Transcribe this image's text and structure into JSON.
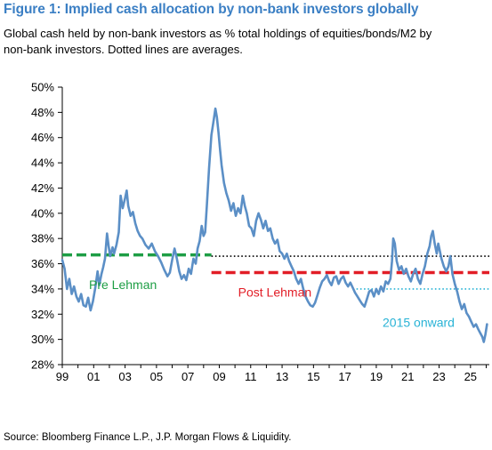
{
  "figure": {
    "title": "Figure 1: Implied cash allocation by non-bank investors globally",
    "subtitle_line1": "Global cash held by non-bank investors as % total holdings of equities/bonds/M2 by",
    "subtitle_line2": "non-bank investors. Dotted lines are averages.",
    "source": "Source: Bloomberg Finance L.P., J.P. Morgan Flows & Liquidity."
  },
  "colors": {
    "title": "#3b7fc4",
    "series": "#5b8fc6",
    "pre_lehman": "#1e9e45",
    "post_lehman": "#e21d26",
    "onward_2015": "#29b3d6",
    "average_dotted": "#000000"
  },
  "chart_data": {
    "type": "line",
    "title": "",
    "xlabel": "",
    "ylabel": "",
    "xlim": [
      1999,
      2026.2
    ],
    "ylim": [
      28,
      50
    ],
    "yticks": [
      28,
      30,
      32,
      34,
      36,
      38,
      40,
      42,
      44,
      46,
      48,
      50
    ],
    "ytick_labels": [
      "28%",
      "30%",
      "32%",
      "34%",
      "36%",
      "38%",
      "40%",
      "42%",
      "44%",
      "46%",
      "48%",
      "50%"
    ],
    "xticks": [
      1999,
      2001,
      2003,
      2005,
      2007,
      2009,
      2011,
      2013,
      2015,
      2017,
      2019,
      2021,
      2023,
      2025
    ],
    "xtick_labels": [
      "99",
      "01",
      "03",
      "05",
      "07",
      "09",
      "11",
      "13",
      "15",
      "17",
      "19",
      "21",
      "23",
      "25"
    ],
    "grid": false,
    "series": [
      {
        "values": [
          [
            1999.0,
            36.3
          ],
          [
            1999.15,
            35.6
          ],
          [
            1999.3,
            34.0
          ],
          [
            1999.45,
            34.8
          ],
          [
            1999.6,
            33.6
          ],
          [
            1999.75,
            34.2
          ],
          [
            1999.9,
            33.4
          ],
          [
            2000.05,
            33.0
          ],
          [
            2000.2,
            33.6
          ],
          [
            2000.35,
            32.7
          ],
          [
            2000.5,
            32.6
          ],
          [
            2000.65,
            33.3
          ],
          [
            2000.8,
            32.3
          ],
          [
            2000.95,
            33.0
          ],
          [
            2001.1,
            34.1
          ],
          [
            2001.25,
            35.4
          ],
          [
            2001.35,
            34.3
          ],
          [
            2001.5,
            35.2
          ],
          [
            2001.6,
            35.7
          ],
          [
            2001.72,
            36.4
          ],
          [
            2001.85,
            38.4
          ],
          [
            2001.95,
            37.4
          ],
          [
            2002.05,
            36.6
          ],
          [
            2002.2,
            37.3
          ],
          [
            2002.3,
            36.8
          ],
          [
            2002.45,
            37.5
          ],
          [
            2002.6,
            38.5
          ],
          [
            2002.72,
            41.4
          ],
          [
            2002.85,
            40.4
          ],
          [
            2003.0,
            41.2
          ],
          [
            2003.1,
            41.8
          ],
          [
            2003.2,
            40.6
          ],
          [
            2003.35,
            39.8
          ],
          [
            2003.5,
            40.1
          ],
          [
            2003.65,
            39.2
          ],
          [
            2003.8,
            38.6
          ],
          [
            2003.95,
            38.2
          ],
          [
            2004.1,
            38.0
          ],
          [
            2004.3,
            37.5
          ],
          [
            2004.5,
            37.2
          ],
          [
            2004.7,
            37.6
          ],
          [
            2004.9,
            37.0
          ],
          [
            2005.1,
            36.6
          ],
          [
            2005.3,
            36.1
          ],
          [
            2005.5,
            35.5
          ],
          [
            2005.7,
            35.0
          ],
          [
            2005.85,
            35.3
          ],
          [
            2006.0,
            36.3
          ],
          [
            2006.15,
            37.2
          ],
          [
            2006.3,
            36.4
          ],
          [
            2006.45,
            35.4
          ],
          [
            2006.6,
            34.8
          ],
          [
            2006.75,
            35.1
          ],
          [
            2006.9,
            34.7
          ],
          [
            2007.05,
            35.6
          ],
          [
            2007.2,
            35.2
          ],
          [
            2007.35,
            36.4
          ],
          [
            2007.5,
            36.0
          ],
          [
            2007.62,
            37.2
          ],
          [
            2007.75,
            37.8
          ],
          [
            2007.88,
            39.0
          ],
          [
            2008.0,
            38.2
          ],
          [
            2008.1,
            38.5
          ],
          [
            2008.2,
            40.5
          ],
          [
            2008.35,
            43.6
          ],
          [
            2008.5,
            46.2
          ],
          [
            2008.62,
            47.2
          ],
          [
            2008.75,
            48.3
          ],
          [
            2008.85,
            47.6
          ],
          [
            2008.95,
            46.4
          ],
          [
            2009.05,
            45.0
          ],
          [
            2009.15,
            43.8
          ],
          [
            2009.3,
            42.4
          ],
          [
            2009.45,
            41.6
          ],
          [
            2009.6,
            41.0
          ],
          [
            2009.75,
            40.2
          ],
          [
            2009.9,
            40.8
          ],
          [
            2010.05,
            39.8
          ],
          [
            2010.2,
            40.4
          ],
          [
            2010.35,
            40.0
          ],
          [
            2010.5,
            41.4
          ],
          [
            2010.62,
            40.6
          ],
          [
            2010.75,
            40.0
          ],
          [
            2010.9,
            39.0
          ],
          [
            2011.05,
            38.8
          ],
          [
            2011.2,
            38.2
          ],
          [
            2011.35,
            39.4
          ],
          [
            2011.5,
            40.0
          ],
          [
            2011.65,
            39.5
          ],
          [
            2011.8,
            38.8
          ],
          [
            2011.95,
            39.4
          ],
          [
            2012.1,
            38.6
          ],
          [
            2012.25,
            38.8
          ],
          [
            2012.4,
            38.0
          ],
          [
            2012.55,
            37.6
          ],
          [
            2012.7,
            37.9
          ],
          [
            2012.85,
            37.0
          ],
          [
            2013.0,
            36.8
          ],
          [
            2013.15,
            36.4
          ],
          [
            2013.3,
            36.8
          ],
          [
            2013.45,
            36.2
          ],
          [
            2013.6,
            35.8
          ],
          [
            2013.75,
            35.4
          ],
          [
            2013.9,
            34.8
          ],
          [
            2014.05,
            34.4
          ],
          [
            2014.2,
            34.8
          ],
          [
            2014.35,
            34.0
          ],
          [
            2014.5,
            33.4
          ],
          [
            2014.65,
            33.0
          ],
          [
            2014.8,
            32.7
          ],
          [
            2014.95,
            32.6
          ],
          [
            2015.1,
            32.9
          ],
          [
            2015.25,
            33.5
          ],
          [
            2015.4,
            34.1
          ],
          [
            2015.55,
            34.6
          ],
          [
            2015.7,
            34.8
          ],
          [
            2015.85,
            35.1
          ],
          [
            2016.0,
            34.6
          ],
          [
            2016.15,
            34.3
          ],
          [
            2016.3,
            34.9
          ],
          [
            2016.45,
            35.0
          ],
          [
            2016.6,
            34.4
          ],
          [
            2016.75,
            34.8
          ],
          [
            2016.9,
            35.0
          ],
          [
            2017.05,
            34.5
          ],
          [
            2017.2,
            34.2
          ],
          [
            2017.35,
            34.5
          ],
          [
            2017.5,
            34.1
          ],
          [
            2017.65,
            33.7
          ],
          [
            2017.8,
            33.4
          ],
          [
            2017.95,
            33.1
          ],
          [
            2018.1,
            32.8
          ],
          [
            2018.25,
            32.6
          ],
          [
            2018.4,
            33.2
          ],
          [
            2018.55,
            33.8
          ],
          [
            2018.7,
            33.9
          ],
          [
            2018.85,
            33.4
          ],
          [
            2019.0,
            34.0
          ],
          [
            2019.15,
            33.6
          ],
          [
            2019.3,
            34.2
          ],
          [
            2019.45,
            33.8
          ],
          [
            2019.6,
            34.6
          ],
          [
            2019.75,
            34.4
          ],
          [
            2019.9,
            34.8
          ],
          [
            2020.0,
            36.2
          ],
          [
            2020.08,
            38.0
          ],
          [
            2020.18,
            37.6
          ],
          [
            2020.3,
            36.2
          ],
          [
            2020.45,
            35.5
          ],
          [
            2020.6,
            35.8
          ],
          [
            2020.75,
            35.2
          ],
          [
            2020.9,
            35.6
          ],
          [
            2021.05,
            35.0
          ],
          [
            2021.2,
            34.6
          ],
          [
            2021.35,
            35.2
          ],
          [
            2021.5,
            35.6
          ],
          [
            2021.65,
            34.8
          ],
          [
            2021.8,
            34.4
          ],
          [
            2021.95,
            35.2
          ],
          [
            2022.1,
            35.8
          ],
          [
            2022.25,
            36.8
          ],
          [
            2022.4,
            37.4
          ],
          [
            2022.5,
            38.2
          ],
          [
            2022.6,
            38.6
          ],
          [
            2022.72,
            37.6
          ],
          [
            2022.85,
            36.8
          ],
          [
            2022.95,
            37.6
          ],
          [
            2023.05,
            37.0
          ],
          [
            2023.15,
            36.4
          ],
          [
            2023.3,
            35.8
          ],
          [
            2023.45,
            35.4
          ],
          [
            2023.6,
            35.8
          ],
          [
            2023.72,
            36.6
          ],
          [
            2023.85,
            35.2
          ],
          [
            2024.0,
            34.4
          ],
          [
            2024.15,
            33.8
          ],
          [
            2024.3,
            33.0
          ],
          [
            2024.45,
            32.4
          ],
          [
            2024.6,
            32.8
          ],
          [
            2024.75,
            32.1
          ],
          [
            2024.9,
            31.8
          ],
          [
            2025.05,
            31.4
          ],
          [
            2025.2,
            31.0
          ],
          [
            2025.35,
            31.2
          ],
          [
            2025.5,
            30.8
          ],
          [
            2025.62,
            30.5
          ],
          [
            2025.75,
            30.2
          ],
          [
            2025.85,
            29.8
          ],
          [
            2025.95,
            30.4
          ],
          [
            2026.05,
            31.2
          ]
        ]
      }
    ],
    "averages": [
      {
        "label": "Pre Lehman",
        "value": 36.7,
        "x_start": 1999,
        "x_end": 2008.5,
        "style": "dashed",
        "color": "#1e9e45"
      },
      {
        "label": "Post Lehman",
        "value": 35.3,
        "x_start": 2008.5,
        "x_end": 2026.2,
        "style": "dashed",
        "color": "#e21d26"
      },
      {
        "label": "2015 onward",
        "value": 34.0,
        "x_start": 2017.5,
        "x_end": 2026.2,
        "style": "dotted",
        "color": "#29b3d6"
      },
      {
        "label": "",
        "value": 36.6,
        "x_start": 2008.5,
        "x_end": 2026.2,
        "style": "dotted",
        "color": "#000000"
      }
    ],
    "annotations": [
      {
        "text": "Pre Lehman",
        "x": 2000.7,
        "y": 34.0,
        "color": "#1e9e45"
      },
      {
        "text": "Post Lehman",
        "x": 2010.2,
        "y": 33.4,
        "color": "#e21d26"
      },
      {
        "text": "2015 onward",
        "x": 2019.4,
        "y": 31.0,
        "color": "#29b3d6"
      }
    ]
  }
}
